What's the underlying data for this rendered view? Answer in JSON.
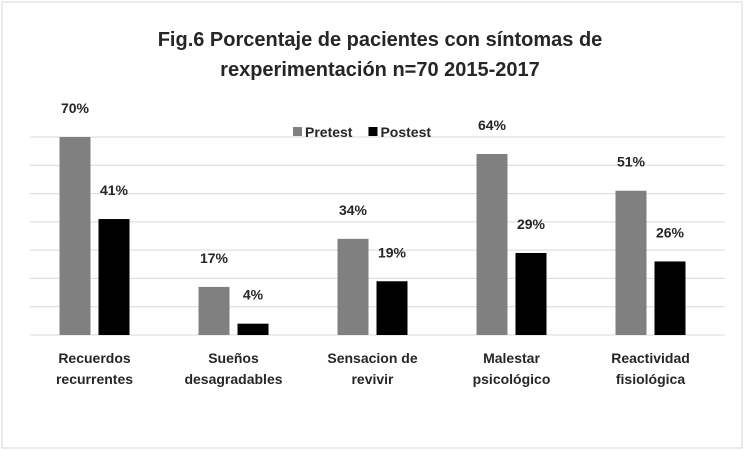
{
  "chart_data": {
    "type": "bar",
    "title": "Fig.6 Porcentaje de pacientes con síntomas de\nrexperimentación n=70  2015-2017",
    "categories": [
      "Recuerdos\nrecurrentes",
      "Sueños\ndesagradables",
      "Sensacion de\nrevivir",
      "Malestar\npsicológico",
      "Reactividad\nfisiológica"
    ],
    "series": [
      {
        "name": "Pretest",
        "color": "#808080",
        "values": [
          70,
          17,
          34,
          64,
          51
        ],
        "value_labels": [
          "70%",
          "17%",
          "34%",
          "64%",
          "51%"
        ]
      },
      {
        "name": "Postest",
        "color": "#000000",
        "values": [
          41,
          4,
          19,
          29,
          26
        ],
        "value_labels": [
          "41%",
          "4%",
          "19%",
          "29%",
          "26%"
        ]
      }
    ],
    "ylim": [
      0,
      70
    ],
    "yticks": [
      0,
      10,
      20,
      30,
      40,
      50,
      60,
      70
    ],
    "grid": true,
    "legend": "top"
  }
}
